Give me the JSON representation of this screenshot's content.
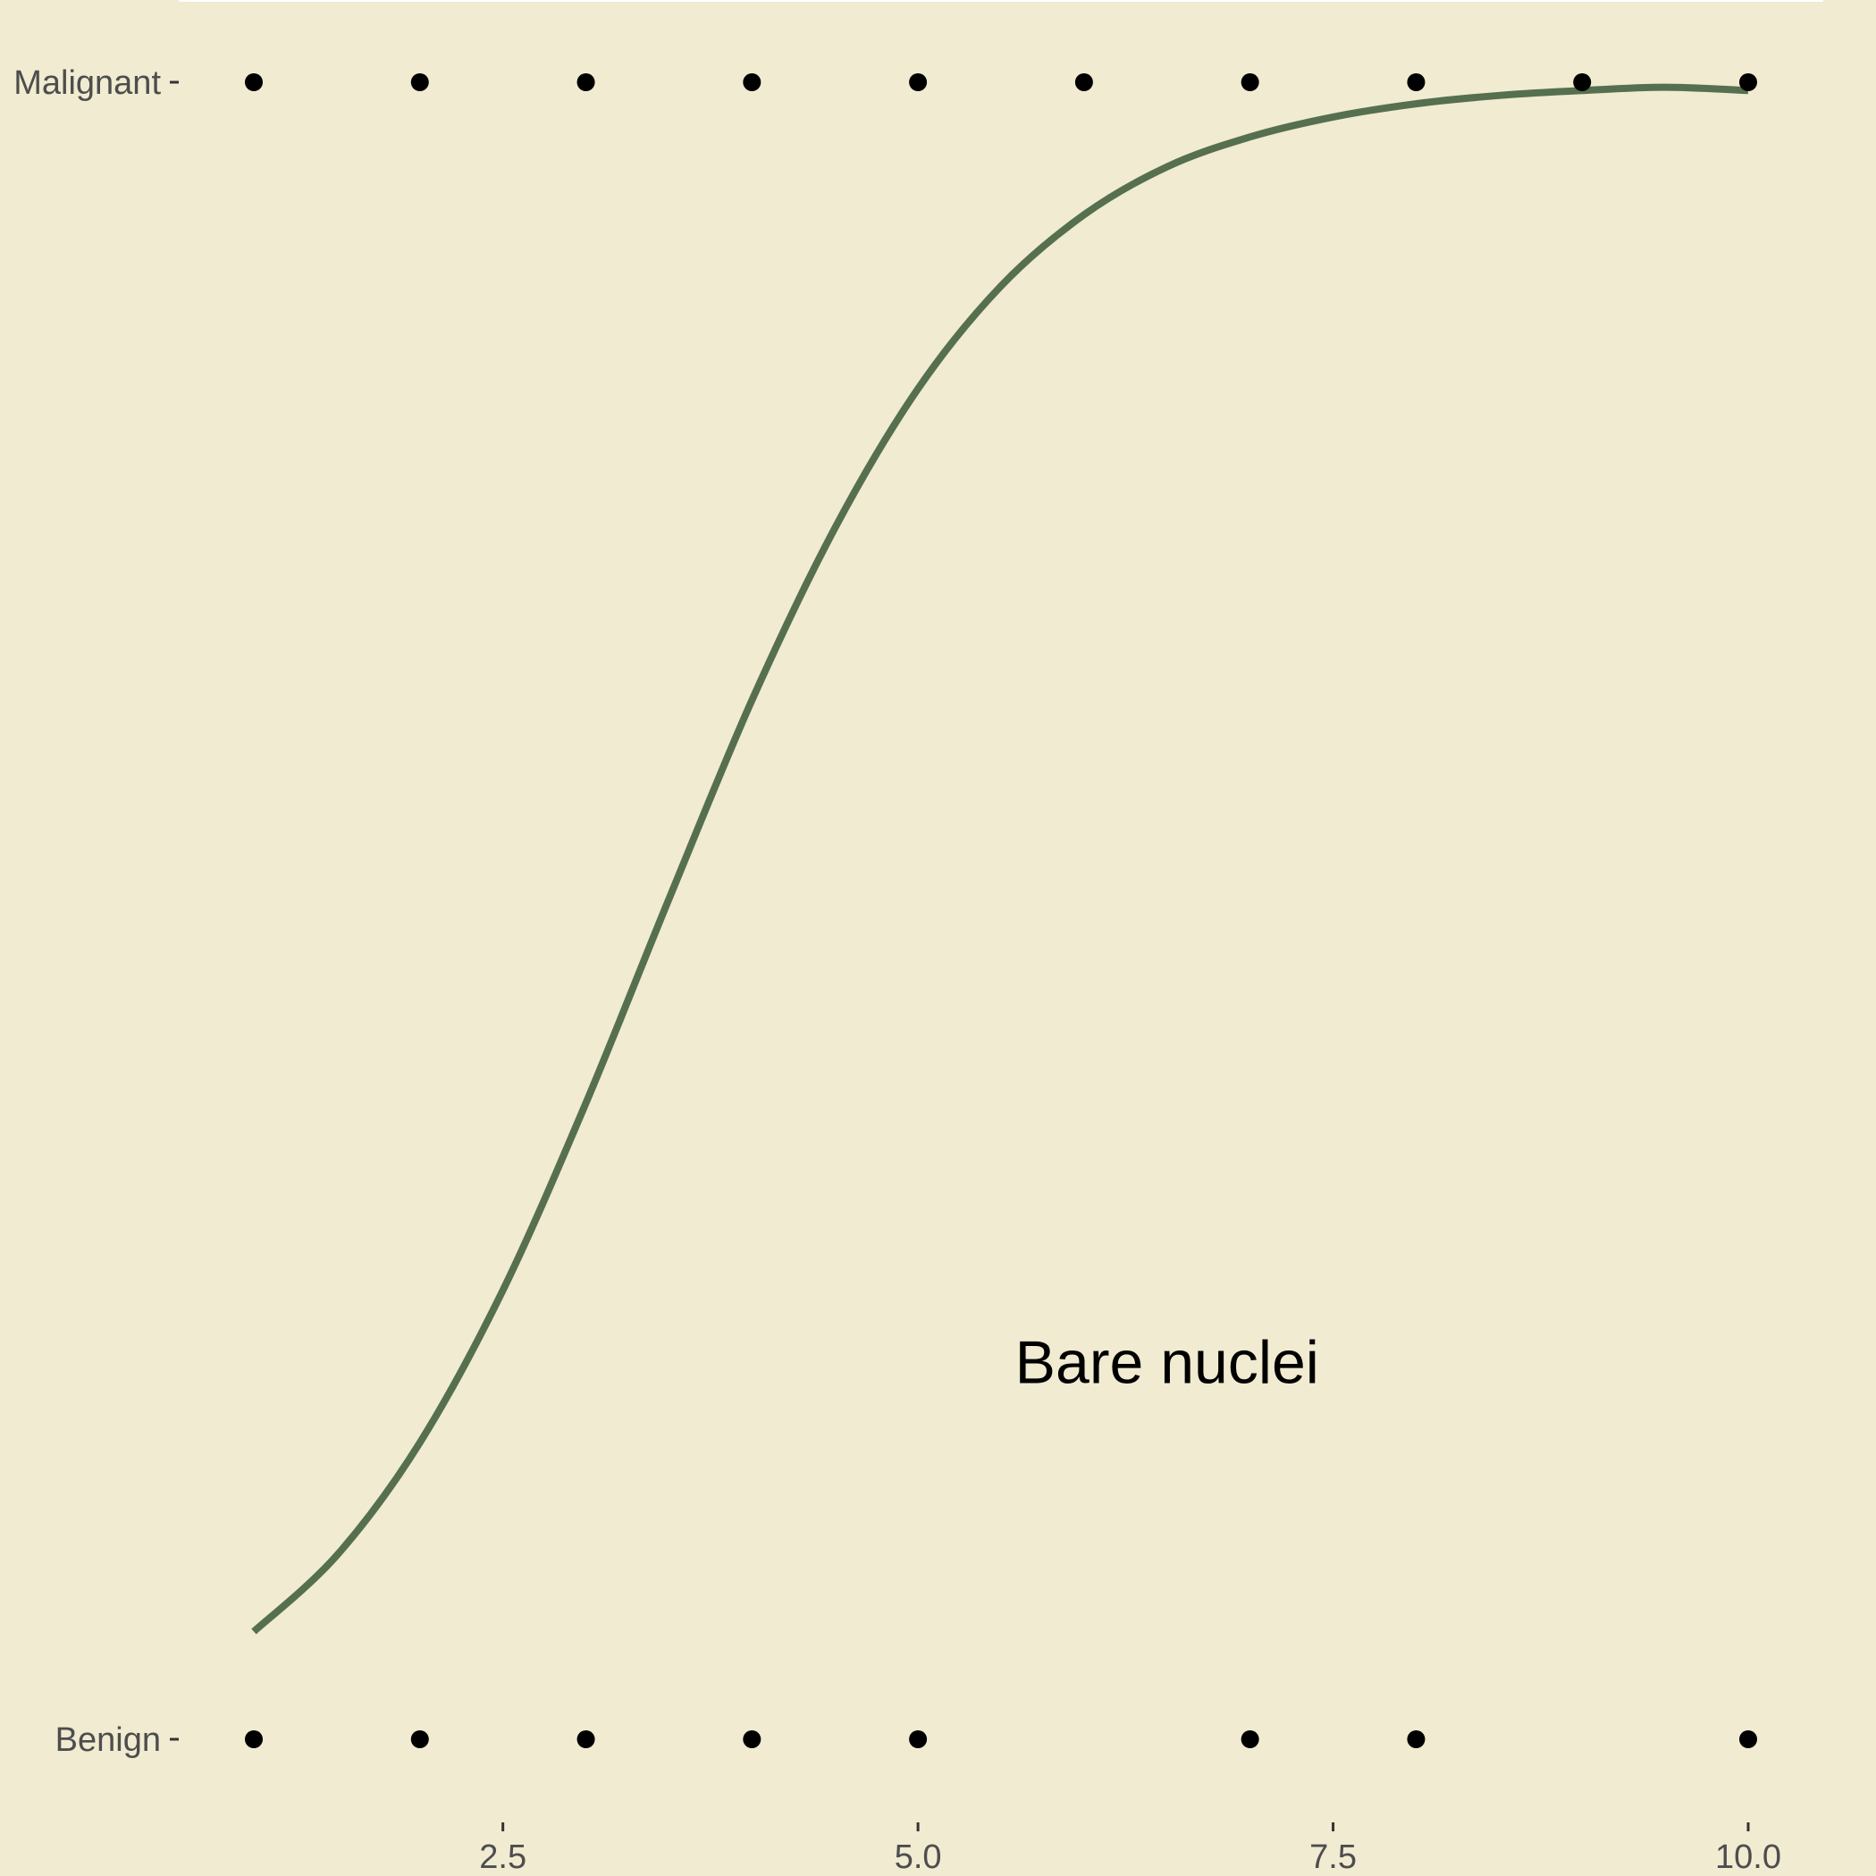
{
  "chart_data": {
    "type": "scatter",
    "title": "",
    "xlabel": "",
    "ylabel": "",
    "xlim": [
      0.65,
      10.45
    ],
    "ylim": [
      -0.05,
      1.05
    ],
    "x_ticks": [
      {
        "value": 2.5,
        "label": "2.5"
      },
      {
        "value": 5.0,
        "label": "5.0"
      },
      {
        "value": 7.5,
        "label": "7.5"
      },
      {
        "value": 10.0,
        "label": "10.0"
      }
    ],
    "y_ticks": [
      {
        "value": 0,
        "label": "Benign"
      },
      {
        "value": 1,
        "label": "Malignant"
      }
    ],
    "grid": false,
    "legend": "none",
    "annotation": {
      "text": "Bare nuclei",
      "x": 6.5,
      "y": 0.215
    },
    "series": [
      {
        "kind": "points",
        "color": "#000000",
        "points": [
          {
            "x": 1,
            "y": 1
          },
          {
            "x": 2,
            "y": 1
          },
          {
            "x": 3,
            "y": 1
          },
          {
            "x": 4,
            "y": 1
          },
          {
            "x": 5,
            "y": 1
          },
          {
            "x": 6,
            "y": 1
          },
          {
            "x": 7,
            "y": 1
          },
          {
            "x": 8,
            "y": 1
          },
          {
            "x": 9,
            "y": 1
          },
          {
            "x": 10,
            "y": 1
          },
          {
            "x": 1,
            "y": 0
          },
          {
            "x": 2,
            "y": 0
          },
          {
            "x": 3,
            "y": 0
          },
          {
            "x": 4,
            "y": 0
          },
          {
            "x": 5,
            "y": 0
          },
          {
            "x": 7,
            "y": 0
          },
          {
            "x": 8,
            "y": 0
          },
          {
            "x": 10,
            "y": 0
          }
        ]
      },
      {
        "kind": "logistic-fit-line",
        "color": "#56704f",
        "x": [
          1,
          1.5,
          2,
          2.5,
          3,
          3.5,
          4,
          4.5,
          5,
          5.5,
          6,
          6.5,
          7,
          7.5,
          8,
          8.5,
          9,
          9.5,
          10
        ],
        "y": [
          0.065,
          0.111,
          0.179,
          0.271,
          0.384,
          0.507,
          0.627,
          0.731,
          0.815,
          0.877,
          0.92,
          0.949,
          0.967,
          0.979,
          0.987,
          0.992,
          0.995,
          0.997,
          0.995
        ]
      }
    ],
    "colors": {
      "background": "#f0ebd1",
      "points": "#000000",
      "curve": "#56704f",
      "tick_text": "#4d4d4d",
      "annotation": "#000000"
    }
  }
}
